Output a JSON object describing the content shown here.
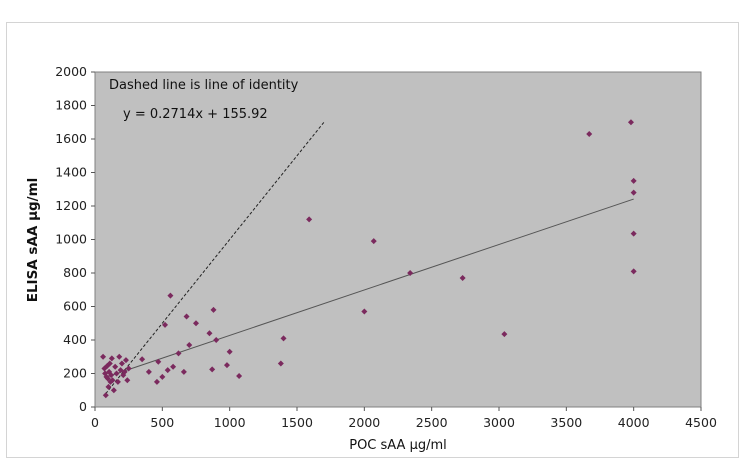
{
  "chart_data": {
    "type": "scatter",
    "title": "",
    "xlabel": "POC sAA µg/ml",
    "ylabel": "ELISA sAA µg/ml",
    "xlim": [
      0,
      4500
    ],
    "ylim": [
      0,
      2000
    ],
    "x_ticks": [
      "0",
      "500",
      "1000",
      "1500",
      "2000",
      "2500",
      "3000",
      "3500",
      "4000",
      "4500"
    ],
    "y_ticks": [
      "0",
      "200",
      "400",
      "600",
      "800",
      "1000",
      "1200",
      "1400",
      "1600",
      "1800",
      "2000"
    ],
    "grid": false,
    "legend": "none",
    "plot_background": "#c0c0c0",
    "marker_color": "#7b2a5e",
    "annotations": {
      "note": "Dashed line is line of identity",
      "equation": "y = 0.2714x + 155.92"
    },
    "trendline": {
      "slope": 0.2714,
      "intercept": 155.92,
      "x_range": [
        80,
        4000
      ]
    },
    "identity_line": {
      "x_range": [
        80,
        1700
      ]
    },
    "points": [
      {
        "x": 60,
        "y": 300
      },
      {
        "x": 70,
        "y": 230
      },
      {
        "x": 75,
        "y": 200
      },
      {
        "x": 80,
        "y": 70
      },
      {
        "x": 85,
        "y": 180
      },
      {
        "x": 90,
        "y": 245
      },
      {
        "x": 95,
        "y": 170
      },
      {
        "x": 100,
        "y": 120
      },
      {
        "x": 105,
        "y": 210
      },
      {
        "x": 110,
        "y": 260
      },
      {
        "x": 115,
        "y": 150
      },
      {
        "x": 120,
        "y": 190
      },
      {
        "x": 125,
        "y": 290
      },
      {
        "x": 130,
        "y": 160
      },
      {
        "x": 140,
        "y": 100
      },
      {
        "x": 150,
        "y": 240
      },
      {
        "x": 160,
        "y": 200
      },
      {
        "x": 170,
        "y": 150
      },
      {
        "x": 180,
        "y": 300
      },
      {
        "x": 190,
        "y": 220
      },
      {
        "x": 200,
        "y": 260
      },
      {
        "x": 210,
        "y": 190
      },
      {
        "x": 220,
        "y": 210
      },
      {
        "x": 230,
        "y": 280
      },
      {
        "x": 240,
        "y": 160
      },
      {
        "x": 250,
        "y": 230
      },
      {
        "x": 350,
        "y": 285
      },
      {
        "x": 400,
        "y": 210
      },
      {
        "x": 460,
        "y": 150
      },
      {
        "x": 470,
        "y": 270
      },
      {
        "x": 500,
        "y": 180
      },
      {
        "x": 520,
        "y": 490
      },
      {
        "x": 540,
        "y": 220
      },
      {
        "x": 560,
        "y": 665
      },
      {
        "x": 580,
        "y": 240
      },
      {
        "x": 620,
        "y": 320
      },
      {
        "x": 660,
        "y": 210
      },
      {
        "x": 680,
        "y": 540
      },
      {
        "x": 700,
        "y": 370
      },
      {
        "x": 750,
        "y": 500
      },
      {
        "x": 850,
        "y": 440
      },
      {
        "x": 870,
        "y": 225
      },
      {
        "x": 880,
        "y": 580
      },
      {
        "x": 900,
        "y": 400
      },
      {
        "x": 980,
        "y": 250
      },
      {
        "x": 1000,
        "y": 330
      },
      {
        "x": 1070,
        "y": 185
      },
      {
        "x": 1380,
        "y": 260
      },
      {
        "x": 1400,
        "y": 410
      },
      {
        "x": 1590,
        "y": 1120
      },
      {
        "x": 2000,
        "y": 570
      },
      {
        "x": 2070,
        "y": 990
      },
      {
        "x": 2340,
        "y": 800
      },
      {
        "x": 2730,
        "y": 770
      },
      {
        "x": 3040,
        "y": 435
      },
      {
        "x": 3670,
        "y": 1630
      },
      {
        "x": 3980,
        "y": 1700
      },
      {
        "x": 4000,
        "y": 1350
      },
      {
        "x": 4000,
        "y": 1280
      },
      {
        "x": 4000,
        "y": 1035
      },
      {
        "x": 4000,
        "y": 810
      }
    ]
  }
}
